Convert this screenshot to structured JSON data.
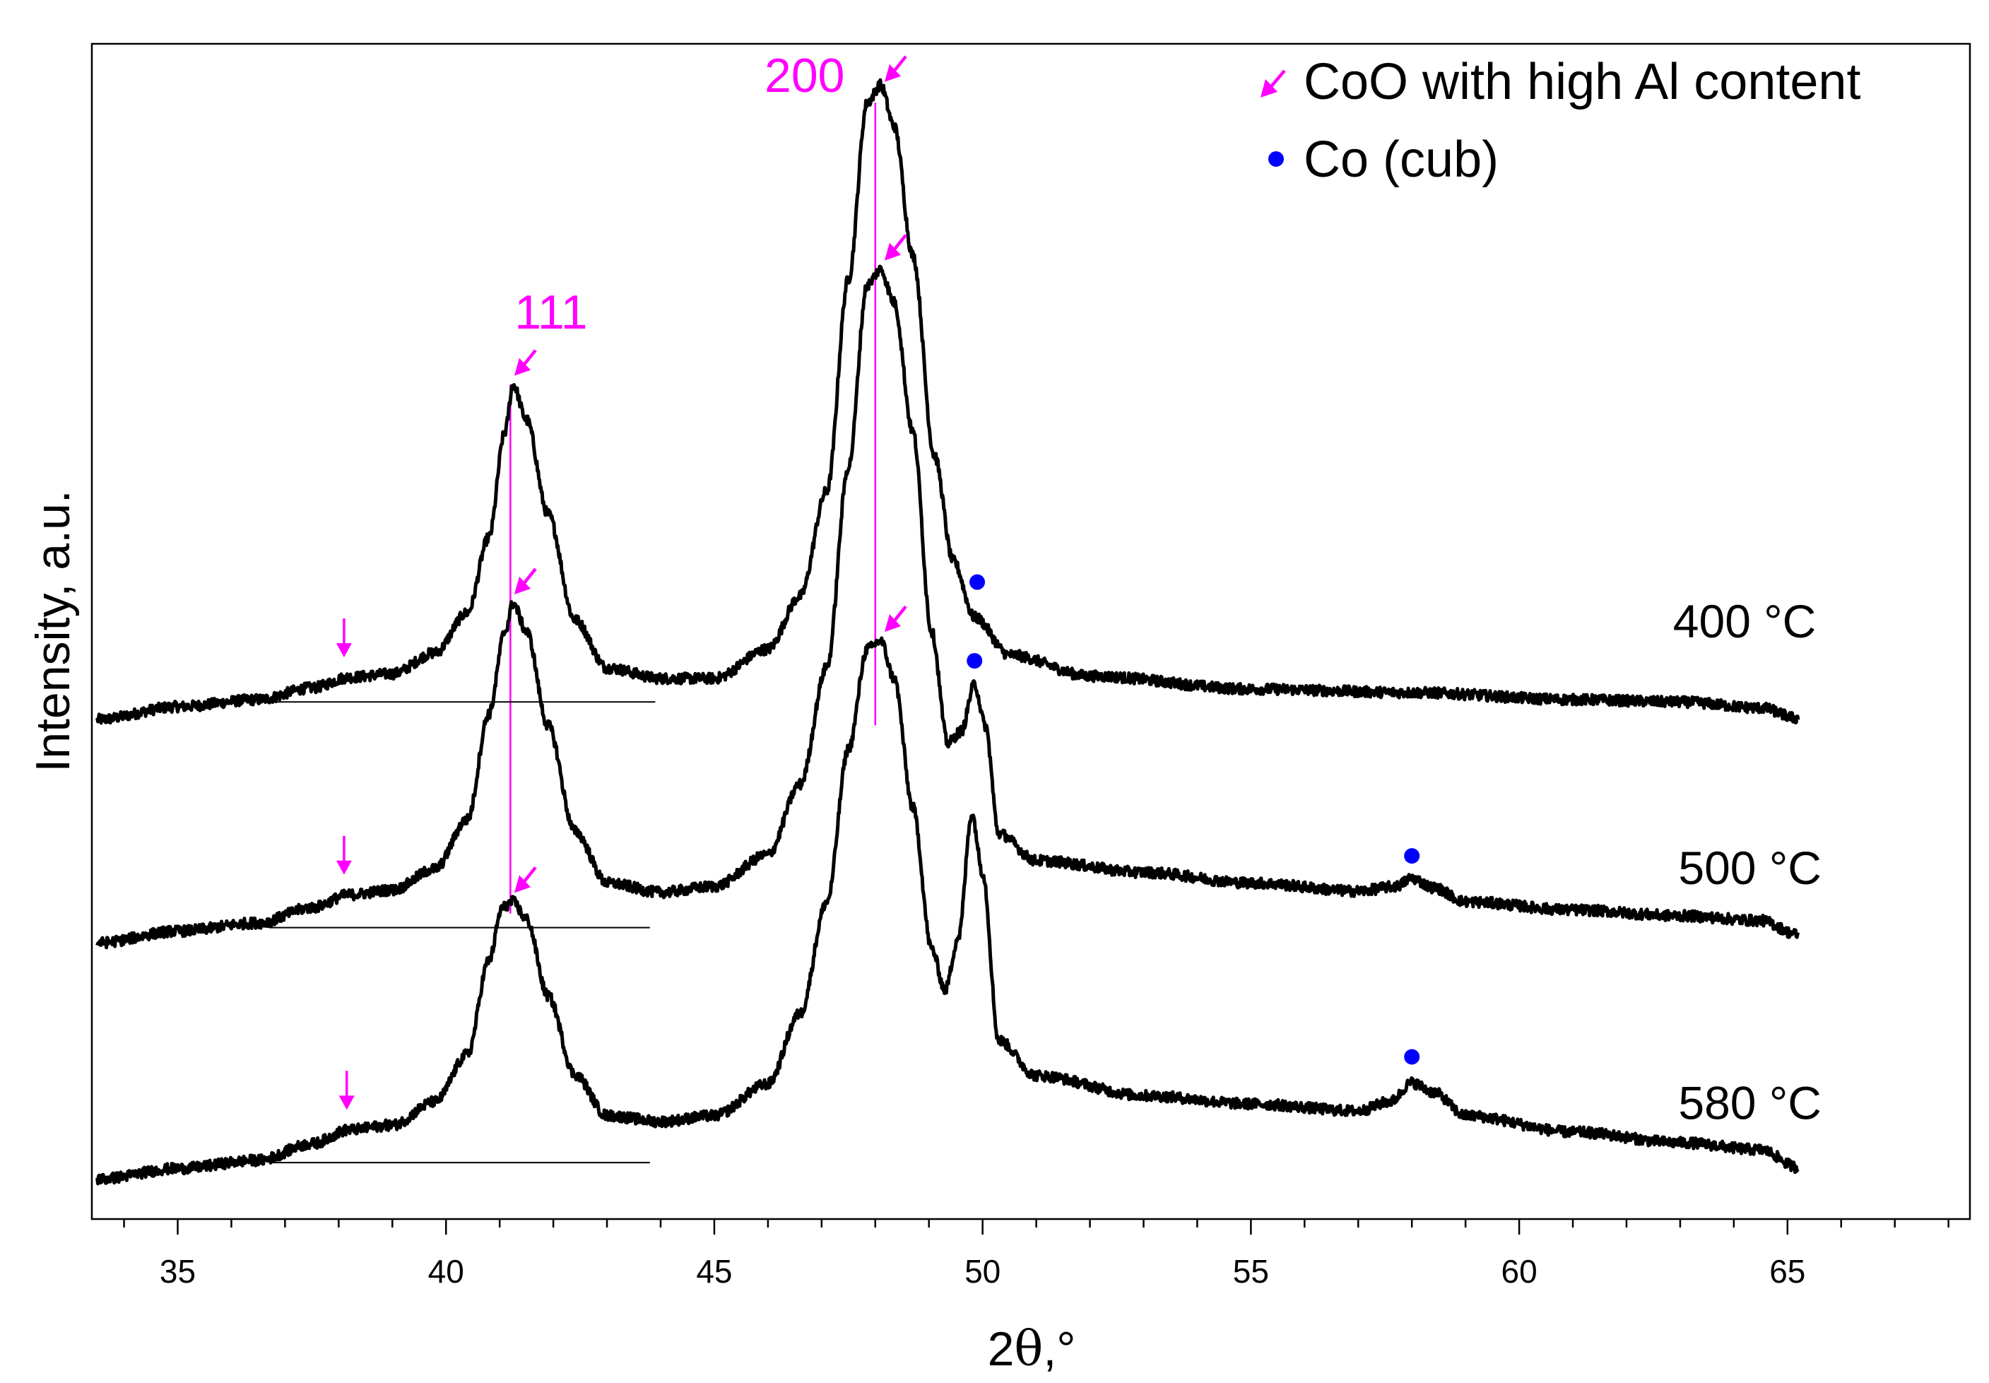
{
  "chart_data": {
    "type": "line",
    "title": "",
    "xlabel_prefix": "2",
    "xlabel_symbol": "θ",
    "xlabel_suffix": ",°",
    "ylabel": "Intensity, a.u.",
    "xlim": [
      33.4,
      68.4
    ],
    "ylim": [
      0,
      100
    ],
    "x_ticks": [
      35,
      40,
      45,
      50,
      55,
      60,
      65
    ],
    "x_tick_labels": [
      "35",
      "40",
      "45",
      "50",
      "55",
      "60",
      "65"
    ],
    "legend": [
      {
        "label": "CoO with high Al content",
        "marker": "arrow",
        "color": "#ff00ff"
      },
      {
        "label": "Co (cub)",
        "marker": "dot",
        "color": "#0000ff"
      }
    ],
    "hkl_labels": [
      {
        "text": "111",
        "x": 41.3,
        "color": "#ff00ff"
      },
      {
        "text": "200",
        "x": 48.0,
        "color": "#ff00ff"
      }
    ],
    "reference_lines": [
      {
        "x": 41.2,
        "y_from": 26.0,
        "y_to": 71.0,
        "color": "#ff00ff"
      },
      {
        "x": 48.0,
        "y_from": 42.0,
        "y_to": 95.0,
        "color": "#ff00ff"
      }
    ],
    "series": [
      {
        "name": "400 °C",
        "label_position": [
          64.2,
          49.5
        ],
        "baseline": {
          "x_from": 36.8,
          "x_to": 43.9,
          "y": 44.0
        },
        "points": [
          [
            33.5,
            42.5
          ],
          [
            35,
            43.6
          ],
          [
            36.5,
            44.2
          ],
          [
            37.5,
            45.2
          ],
          [
            38.2,
            46.1
          ],
          [
            39,
            46.4
          ],
          [
            39.8,
            48.2
          ],
          [
            40.4,
            51.6
          ],
          [
            40.8,
            58
          ],
          [
            41.1,
            67
          ],
          [
            41.25,
            71.0
          ],
          [
            41.5,
            68
          ],
          [
            41.9,
            60
          ],
          [
            42.4,
            51
          ],
          [
            43,
            46.9
          ],
          [
            44,
            46.0
          ],
          [
            45,
            46.0
          ],
          [
            46,
            48.5
          ],
          [
            46.6,
            53
          ],
          [
            47.1,
            62
          ],
          [
            47.5,
            80
          ],
          [
            47.85,
            95.0
          ],
          [
            48.1,
            96.5
          ],
          [
            48.35,
            93
          ],
          [
            48.7,
            82
          ],
          [
            49.1,
            65
          ],
          [
            49.45,
            56
          ],
          [
            49.85,
            51.2
          ],
          [
            50.5,
            48
          ],
          [
            52,
            46.2
          ],
          [
            55,
            45.1
          ],
          [
            58,
            44.8
          ],
          [
            61,
            44.2
          ],
          [
            63,
            44.0
          ],
          [
            64.5,
            43.5
          ],
          [
            65.2,
            42.6
          ]
        ],
        "markers": {
          "coo_arrows_down": [
            {
              "x": 38.1,
              "y": 47.8
            }
          ],
          "coo_arrows_diag": [
            {
              "x": 41.3,
              "y": 72.0
            },
            {
              "x": 48.2,
              "y": 97.0
            }
          ],
          "co_dots": [
            {
              "x": 49.9,
              "y": 54.2
            }
          ]
        }
      },
      {
        "name": "500 °C",
        "label_position": [
          64.3,
          28.5
        ],
        "baseline": {
          "x_from": 36.7,
          "x_to": 43.8,
          "y": 24.8
        },
        "points": [
          [
            33.5,
            23.5
          ],
          [
            35,
            24.5
          ],
          [
            36.5,
            25.2
          ],
          [
            37.5,
            26.5
          ],
          [
            38.2,
            27.6
          ],
          [
            39,
            28.0
          ],
          [
            39.8,
            29.8
          ],
          [
            40.4,
            34
          ],
          [
            40.8,
            43
          ],
          [
            41.1,
            50
          ],
          [
            41.25,
            52.4
          ],
          [
            41.5,
            50
          ],
          [
            41.9,
            42
          ],
          [
            42.4,
            33
          ],
          [
            43,
            28.6
          ],
          [
            44,
            27.8
          ],
          [
            45,
            28.3
          ],
          [
            46,
            31
          ],
          [
            46.6,
            37
          ],
          [
            47.1,
            47
          ],
          [
            47.5,
            64
          ],
          [
            47.85,
            79.5
          ],
          [
            48.1,
            80.8
          ],
          [
            48.35,
            78
          ],
          [
            48.7,
            67
          ],
          [
            49.05,
            50
          ],
          [
            49.35,
            40.5
          ],
          [
            49.6,
            41.5
          ],
          [
            49.85,
            45.5
          ],
          [
            50.05,
            42
          ],
          [
            50.3,
            32.8
          ],
          [
            51,
            30.5
          ],
          [
            53,
            29.5
          ],
          [
            55,
            28.6
          ],
          [
            57,
            27.9
          ],
          [
            57.7,
            28.3
          ],
          [
            58,
            29.0
          ],
          [
            58.4,
            28.2
          ],
          [
            59,
            27.0
          ],
          [
            61,
            26.3
          ],
          [
            63,
            25.8
          ],
          [
            64.5,
            25.4
          ],
          [
            65.2,
            24.2
          ]
        ],
        "markers": {
          "coo_arrows_down": [
            {
              "x": 38.1,
              "y": 29.3
            }
          ],
          "coo_arrows_diag": [
            {
              "x": 41.3,
              "y": 53.4
            },
            {
              "x": 48.2,
              "y": 81.8
            }
          ],
          "co_dots": [
            {
              "x": 49.85,
              "y": 47.5
            },
            {
              "x": 58.0,
              "y": 30.9
            }
          ]
        }
      },
      {
        "name": "580 °C",
        "label_position": [
          64.3,
          8.5
        ],
        "baseline": {
          "x_from": 36.7,
          "x_to": 43.8,
          "y": 4.8
        },
        "points": [
          [
            33.5,
            3.4
          ],
          [
            35,
            4.3
          ],
          [
            36.5,
            5.0
          ],
          [
            37.5,
            6.4
          ],
          [
            38.2,
            7.6
          ],
          [
            39,
            8.0
          ],
          [
            39.8,
            10.0
          ],
          [
            40.4,
            14
          ],
          [
            40.8,
            22
          ],
          [
            41.05,
            26.5
          ],
          [
            41.25,
            27.0
          ],
          [
            41.5,
            25.5
          ],
          [
            41.9,
            19
          ],
          [
            42.4,
            12.3
          ],
          [
            43,
            8.8
          ],
          [
            44,
            8.3
          ],
          [
            45,
            8.8
          ],
          [
            46,
            11.5
          ],
          [
            46.6,
            17.5
          ],
          [
            47.1,
            27
          ],
          [
            47.5,
            40
          ],
          [
            47.85,
            48.5
          ],
          [
            48.1,
            49.2
          ],
          [
            48.35,
            46
          ],
          [
            48.7,
            35
          ],
          [
            49.05,
            23
          ],
          [
            49.3,
            19.5
          ],
          [
            49.55,
            24
          ],
          [
            49.8,
            34.5
          ],
          [
            50.0,
            29.5
          ],
          [
            50.3,
            15.2
          ],
          [
            51,
            12.2
          ],
          [
            53,
            10.5
          ],
          [
            55,
            9.8
          ],
          [
            57,
            9.2
          ],
          [
            57.6,
            10.0
          ],
          [
            58,
            11.6
          ],
          [
            58.4,
            10.8
          ],
          [
            59,
            8.8
          ],
          [
            61,
            7.4
          ],
          [
            63,
            6.5
          ],
          [
            64.5,
            5.9
          ],
          [
            65.2,
            4.4
          ]
        ],
        "markers": {
          "coo_arrows_down": [
            {
              "x": 38.15,
              "y": 9.3
            }
          ],
          "coo_arrows_diag": [
            {
              "x": 41.3,
              "y": 28.0
            },
            {
              "x": 48.2,
              "y": 50.2
            }
          ],
          "co_dots": [
            {
              "x": 58.0,
              "y": 13.8
            }
          ]
        }
      }
    ]
  }
}
